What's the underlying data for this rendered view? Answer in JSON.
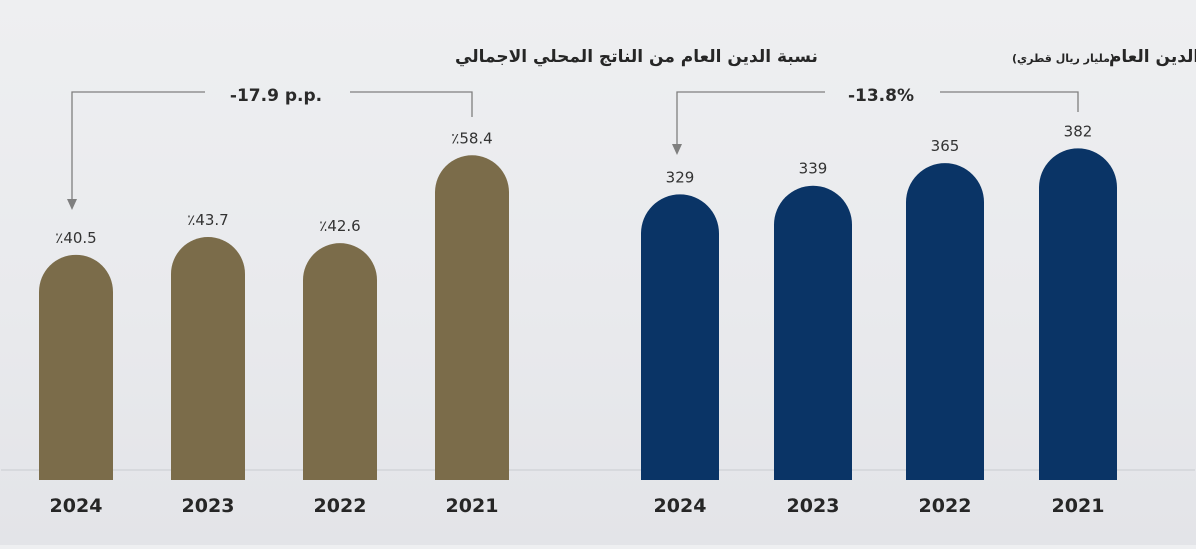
{
  "chart_data": [
    {
      "type": "bar",
      "title": "نسبة الدين العام من الناتج المحلي الاجمالي",
      "subtitle": "",
      "change_label": "-17.9 p.p.",
      "categories": [
        "2024",
        "2023",
        "2022",
        "2021"
      ],
      "values": [
        40.5,
        43.7,
        42.6,
        58.4
      ],
      "value_labels": [
        "٪40.5",
        "٪43.7",
        "٪42.6",
        "٪58.4"
      ],
      "bar_color": "#7b6c4a",
      "legend": "none",
      "grid": false
    },
    {
      "type": "bar",
      "title": "إجمالي الدين العام",
      "subtitle": "(مليار ريال قطري)",
      "change_label": "-13.8%",
      "categories": [
        "2024",
        "2023",
        "2022",
        "2021"
      ],
      "values": [
        329,
        339,
        365,
        382
      ],
      "value_labels": [
        "329",
        "339",
        "365",
        "382"
      ],
      "bar_color": "#0a3466",
      "legend": "none",
      "grid": false
    }
  ]
}
